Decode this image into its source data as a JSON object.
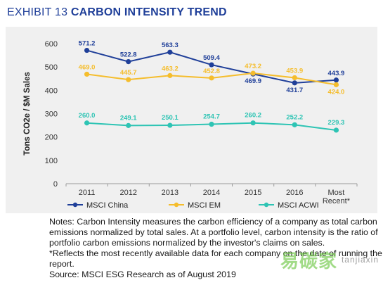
{
  "header": {
    "prefix": "EXHIBIT 13",
    "title": "CARBON INTENSITY TREND"
  },
  "chart_data": {
    "type": "line",
    "title": "CARBON INTENSITY TREND",
    "ylabel": "Tons CO2e / $M Sales",
    "xlabel": "",
    "categories": [
      "2011",
      "2012",
      "2013",
      "2014",
      "2015",
      "2016",
      "Most Recent*"
    ],
    "ylim": [
      0,
      600
    ],
    "yticks": [
      0,
      100,
      200,
      300,
      400,
      500,
      600
    ],
    "grid": false,
    "legend_position": "bottom",
    "series": [
      {
        "name": "MSCI China",
        "color": "#1f3f99",
        "values": [
          571.2,
          522.8,
          563.3,
          509.4,
          469.9,
          431.7,
          443.9
        ]
      },
      {
        "name": "MSCI EM",
        "color": "#f5bd2c",
        "values": [
          469.0,
          445.7,
          463.2,
          452.8,
          473.2,
          453.9,
          424.0
        ]
      },
      {
        "name": "MSCI ACWI",
        "color": "#2ec4b4",
        "values": [
          260.0,
          249.1,
          250.1,
          254.7,
          260.2,
          252.2,
          229.3
        ]
      }
    ]
  },
  "notes": [
    "Notes: Carbon Intensity measures the carbon efficiency of a company as total carbon",
    "emissions normalized by total sales.  At a portfolio level, carbon intensity is the ratio of",
    "portfolio carbon emissions normalized by the investor's claims on sales.",
    "*Reflects  the most recently available data for each company on the date of running the",
    "report.",
    "Source: MSCI ESG Research as of August 2019"
  ],
  "watermark": {
    "text": "易碳家",
    "subtext": "tanjiaxin"
  }
}
